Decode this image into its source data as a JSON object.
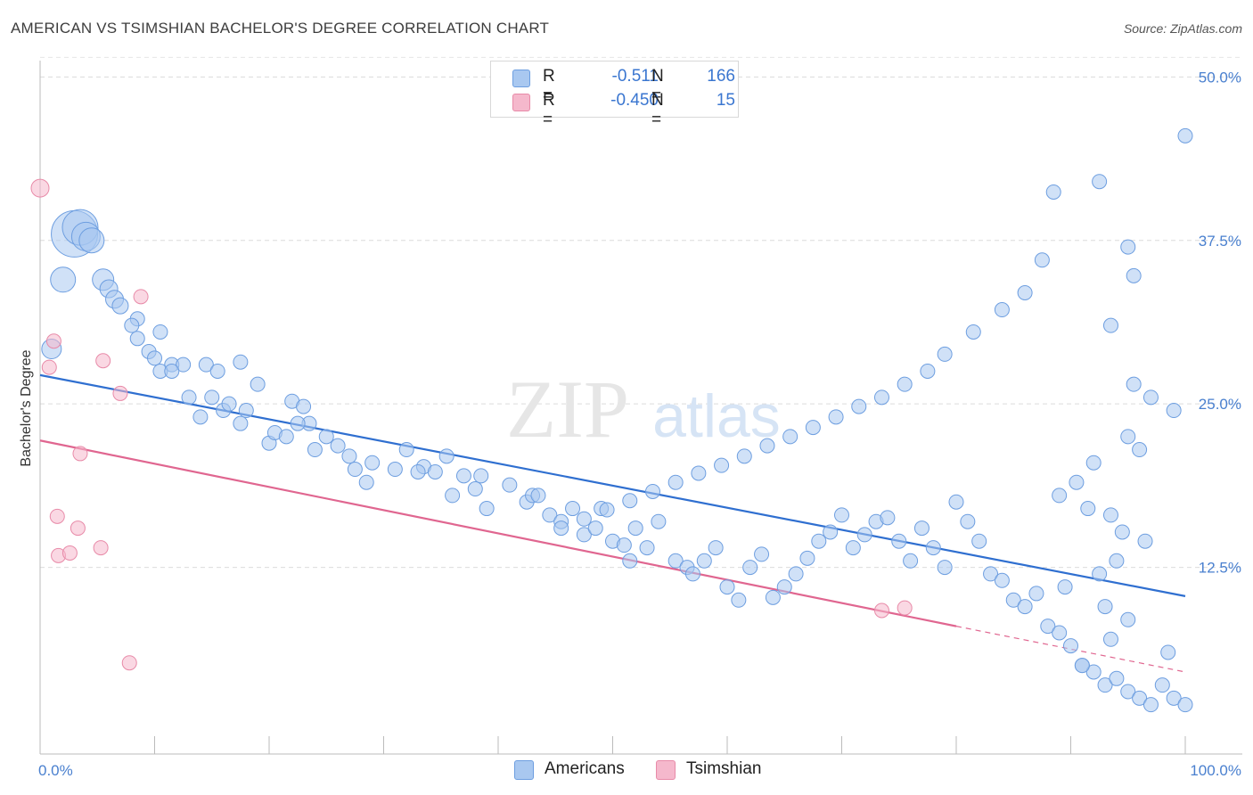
{
  "header": {
    "title": "AMERICAN VS TSIMSHIAN BACHELOR'S DEGREE CORRELATION CHART",
    "source": "Source: ZipAtlas.com"
  },
  "watermark": {
    "zip": "ZIP",
    "atlas": "atlas"
  },
  "legend": {
    "rows": [
      {
        "r_label": "R =",
        "r_value": "-0.511",
        "n_label": "N =",
        "n_value": "166",
        "color": "#a9c8f0"
      },
      {
        "r_label": "R =",
        "r_value": "-0.450",
        "n_label": "N =",
        "n_value": "15",
        "color": "#f5b8cc"
      }
    ]
  },
  "bottom_legend": [
    {
      "label": "Americans",
      "color": "#a9c8f0"
    },
    {
      "label": "Tsimshian",
      "color": "#f5b8cc"
    }
  ],
  "chart_data": {
    "type": "scatter",
    "title": "AMERICAN VS TSIMSHIAN BACHELOR'S DEGREE CORRELATION CHART",
    "xlabel": "",
    "ylabel": "Bachelor's Degree",
    "xlim": [
      0,
      100
    ],
    "ylim": [
      0,
      52
    ],
    "x_tick_labels": [
      "0.0%",
      "100.0%"
    ],
    "y_ticks": [
      12.5,
      25.0,
      37.5,
      50.0
    ],
    "y_tick_labels": [
      "12.5%",
      "25.0%",
      "37.5%",
      "50.0%"
    ],
    "grid": "horizontal dashed",
    "legend_position": "top-center",
    "colors": {
      "americans_fill": "#a9c8f0",
      "americans_stroke": "#6d9ee0",
      "americans_line": "#2f6fd0",
      "tsimshian_fill": "#f5b8cc",
      "tsimshian_stroke": "#e88aa8",
      "tsimshian_line": "#e06690"
    },
    "series": [
      {
        "name": "Americans",
        "trend": {
          "x": [
            0,
            100
          ],
          "y": [
            27.2,
            10.3
          ]
        },
        "points": [
          [
            3,
            38,
            26
          ],
          [
            3.5,
            38.5,
            20
          ],
          [
            4,
            37.8,
            16
          ],
          [
            4.5,
            37.5,
            14
          ],
          [
            2,
            34.5,
            14
          ],
          [
            1,
            29.2,
            11
          ],
          [
            5.5,
            34.5,
            12
          ],
          [
            6,
            33.8,
            10
          ],
          [
            6.5,
            33,
            10
          ],
          [
            7,
            32.5,
            9
          ],
          [
            8.5,
            31.5,
            8
          ],
          [
            8,
            31,
            8
          ],
          [
            8.5,
            30,
            8
          ],
          [
            10.5,
            30.5,
            8
          ],
          [
            9.5,
            29,
            8
          ],
          [
            10,
            28.5,
            8
          ],
          [
            11.5,
            28,
            8
          ],
          [
            12.5,
            28,
            8
          ],
          [
            10.5,
            27.5,
            8
          ],
          [
            11.5,
            27.5,
            8
          ],
          [
            14.5,
            28,
            8
          ],
          [
            15.5,
            27.5,
            8
          ],
          [
            17.5,
            28.2,
            8
          ],
          [
            13,
            25.5,
            8
          ],
          [
            14,
            24,
            8
          ],
          [
            15,
            25.5,
            8
          ],
          [
            16,
            24.5,
            8
          ],
          [
            16.5,
            25,
            8
          ],
          [
            18,
            24.5,
            8
          ],
          [
            17.5,
            23.5,
            8
          ],
          [
            19,
            26.5,
            8
          ],
          [
            20,
            22,
            8
          ],
          [
            20.5,
            22.8,
            8
          ],
          [
            21.5,
            22.5,
            8
          ],
          [
            22,
            25.2,
            8
          ],
          [
            23,
            24.8,
            8
          ],
          [
            23.5,
            23.5,
            8
          ],
          [
            24,
            21.5,
            8
          ],
          [
            22.5,
            23.5,
            8
          ],
          [
            25,
            22.5,
            8
          ],
          [
            26,
            21.8,
            8
          ],
          [
            27.5,
            20,
            8
          ],
          [
            27,
            21,
            8
          ],
          [
            28.5,
            19,
            8
          ],
          [
            29,
            20.5,
            8
          ],
          [
            31,
            20,
            8
          ],
          [
            32,
            21.5,
            8
          ],
          [
            33.5,
            20.2,
            8
          ],
          [
            33,
            19.8,
            8
          ],
          [
            34.5,
            19.8,
            8
          ],
          [
            35.5,
            21,
            8
          ],
          [
            36,
            18,
            8
          ],
          [
            37,
            19.5,
            8
          ],
          [
            38,
            18.5,
            8
          ],
          [
            38.5,
            19.5,
            8
          ],
          [
            39,
            17,
            8
          ],
          [
            41,
            18.8,
            8
          ],
          [
            42.5,
            17.5,
            8
          ],
          [
            43,
            18,
            8
          ],
          [
            43.5,
            18,
            8
          ],
          [
            44.5,
            16.5,
            8
          ],
          [
            45.5,
            16,
            8
          ],
          [
            46.5,
            17,
            8
          ],
          [
            47.5,
            15,
            8
          ],
          [
            48.5,
            15.5,
            8
          ],
          [
            49,
            17,
            8
          ],
          [
            50,
            14.5,
            8
          ],
          [
            51,
            14.2,
            8
          ],
          [
            51.5,
            13,
            8
          ],
          [
            52,
            15.5,
            8
          ],
          [
            53,
            14,
            8
          ],
          [
            54,
            16,
            8
          ],
          [
            55.5,
            13,
            8
          ],
          [
            56.5,
            12.5,
            8
          ],
          [
            57,
            12,
            8
          ],
          [
            58,
            13,
            8
          ],
          [
            59,
            14,
            8
          ],
          [
            60,
            11,
            8
          ],
          [
            61,
            10,
            8
          ],
          [
            62,
            12.5,
            8
          ],
          [
            63,
            13.5,
            8
          ],
          [
            64,
            10.2,
            8
          ],
          [
            65,
            11,
            8
          ],
          [
            66,
            12,
            8
          ],
          [
            67,
            13.2,
            8
          ],
          [
            68,
            14.5,
            8
          ],
          [
            69,
            15.2,
            8
          ],
          [
            70,
            16.5,
            8
          ],
          [
            71,
            14,
            8
          ],
          [
            72,
            15,
            8
          ],
          [
            73,
            16,
            8
          ],
          [
            74,
            16.3,
            8
          ],
          [
            75,
            14.5,
            8
          ],
          [
            76,
            13,
            8
          ],
          [
            77,
            15.5,
            8
          ],
          [
            78,
            14,
            8
          ],
          [
            79,
            12.5,
            8
          ],
          [
            80,
            17.5,
            8
          ],
          [
            81,
            16,
            8
          ],
          [
            82,
            14.5,
            8
          ],
          [
            83,
            12,
            8
          ],
          [
            84,
            11.5,
            8
          ],
          [
            85,
            10,
            8
          ],
          [
            86,
            9.5,
            8
          ],
          [
            87,
            10.5,
            8
          ],
          [
            88,
            8,
            8
          ],
          [
            89,
            7.5,
            8
          ],
          [
            90,
            6.5,
            8
          ],
          [
            91,
            5,
            8
          ],
          [
            92,
            4.5,
            8
          ],
          [
            93,
            3.5,
            8
          ],
          [
            94,
            4,
            8
          ],
          [
            95,
            3,
            8
          ],
          [
            96,
            2.5,
            8
          ],
          [
            97,
            2,
            8
          ],
          [
            98,
            3.5,
            8
          ],
          [
            99,
            2.5,
            8
          ],
          [
            100,
            2,
            8
          ],
          [
            100,
            45.5,
            8
          ],
          [
            92.5,
            42,
            8
          ],
          [
            88.5,
            41.2,
            8
          ],
          [
            95,
            37,
            8
          ],
          [
            95.5,
            34.8,
            8
          ],
          [
            93.5,
            31,
            8
          ],
          [
            95.5,
            26.5,
            8
          ],
          [
            97,
            25.5,
            8
          ],
          [
            99,
            24.5,
            8
          ],
          [
            95,
            22.5,
            8
          ],
          [
            96,
            21.5,
            8
          ],
          [
            92,
            20.5,
            8
          ],
          [
            90.5,
            19,
            8
          ],
          [
            89,
            18,
            8
          ],
          [
            91.5,
            17,
            8
          ],
          [
            93.5,
            16.5,
            8
          ],
          [
            94.5,
            15.2,
            8
          ],
          [
            96.5,
            14.5,
            8
          ],
          [
            94,
            13,
            8
          ],
          [
            92.5,
            12,
            8
          ],
          [
            89.5,
            11,
            8
          ],
          [
            93,
            9.5,
            8
          ],
          [
            95,
            8.5,
            8
          ],
          [
            93.5,
            7,
            8
          ],
          [
            98.5,
            6,
            8
          ],
          [
            91,
            5,
            8
          ],
          [
            87.5,
            36,
            8
          ],
          [
            86,
            33.5,
            8
          ],
          [
            84,
            32.2,
            8
          ],
          [
            81.5,
            30.5,
            8
          ],
          [
            79,
            28.8,
            8
          ],
          [
            77.5,
            27.5,
            8
          ],
          [
            75.5,
            26.5,
            8
          ],
          [
            73.5,
            25.5,
            8
          ],
          [
            71.5,
            24.8,
            8
          ],
          [
            69.5,
            24,
            8
          ],
          [
            67.5,
            23.2,
            8
          ],
          [
            65.5,
            22.5,
            8
          ],
          [
            63.5,
            21.8,
            8
          ],
          [
            61.5,
            21,
            8
          ],
          [
            59.5,
            20.3,
            8
          ],
          [
            57.5,
            19.7,
            8
          ],
          [
            55.5,
            19,
            8
          ],
          [
            53.5,
            18.3,
            8
          ],
          [
            51.5,
            17.6,
            8
          ],
          [
            49.5,
            16.9,
            8
          ],
          [
            47.5,
            16.2,
            8
          ],
          [
            45.5,
            15.5,
            8
          ]
        ]
      },
      {
        "name": "Tsimshian",
        "trend": {
          "x": [
            0,
            80,
            100
          ],
          "y": [
            22.2,
            8.0,
            4.5
          ]
        },
        "points": [
          [
            0,
            41.5,
            10
          ],
          [
            1.2,
            29.8,
            8
          ],
          [
            0.8,
            27.8,
            8
          ],
          [
            3.5,
            21.2,
            8
          ],
          [
            5.5,
            28.3,
            8
          ],
          [
            7,
            25.8,
            8
          ],
          [
            8.8,
            33.2,
            8
          ],
          [
            1.5,
            16.4,
            8
          ],
          [
            1.6,
            13.4,
            8
          ],
          [
            2.6,
            13.6,
            8
          ],
          [
            3.3,
            15.5,
            8
          ],
          [
            5.3,
            14,
            8
          ],
          [
            7.8,
            5.2,
            8
          ],
          [
            73.5,
            9.2,
            8
          ],
          [
            75.5,
            9.4,
            8
          ]
        ]
      }
    ]
  }
}
